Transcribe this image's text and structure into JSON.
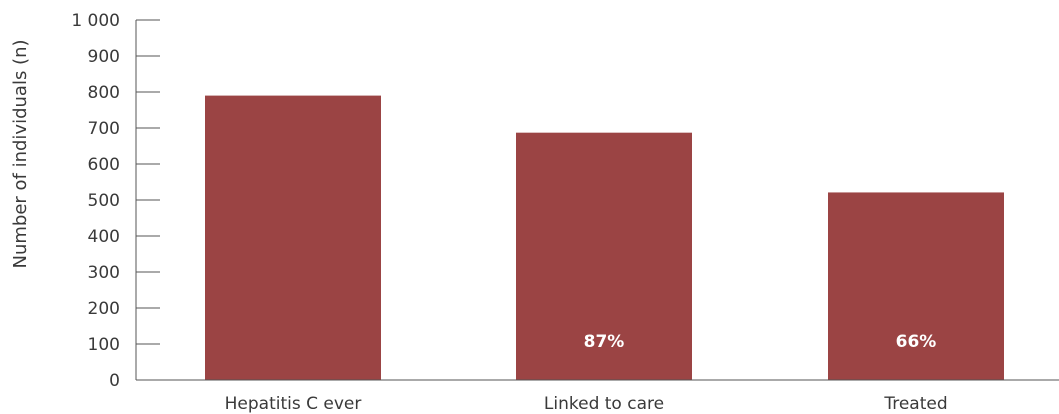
{
  "chart_data": {
    "type": "bar",
    "categories": [
      "Hepatitis C ever",
      "Linked to care",
      "Treated"
    ],
    "values": [
      790,
      687,
      521
    ],
    "data_labels": [
      "",
      "87%",
      "66%"
    ],
    "title": "",
    "xlabel": "",
    "ylabel": "Number of individuals (n)",
    "ylim": [
      0,
      1000
    ],
    "yticks": [
      0,
      100,
      200,
      300,
      400,
      500,
      600,
      700,
      800,
      900,
      1000
    ],
    "ytick_labels": [
      "0",
      "100",
      "200",
      "300",
      "400",
      "500",
      "600",
      "700",
      "800",
      "900",
      "1 000"
    ],
    "grid": false,
    "legend": "none",
    "bar_color": "#9b4444"
  }
}
